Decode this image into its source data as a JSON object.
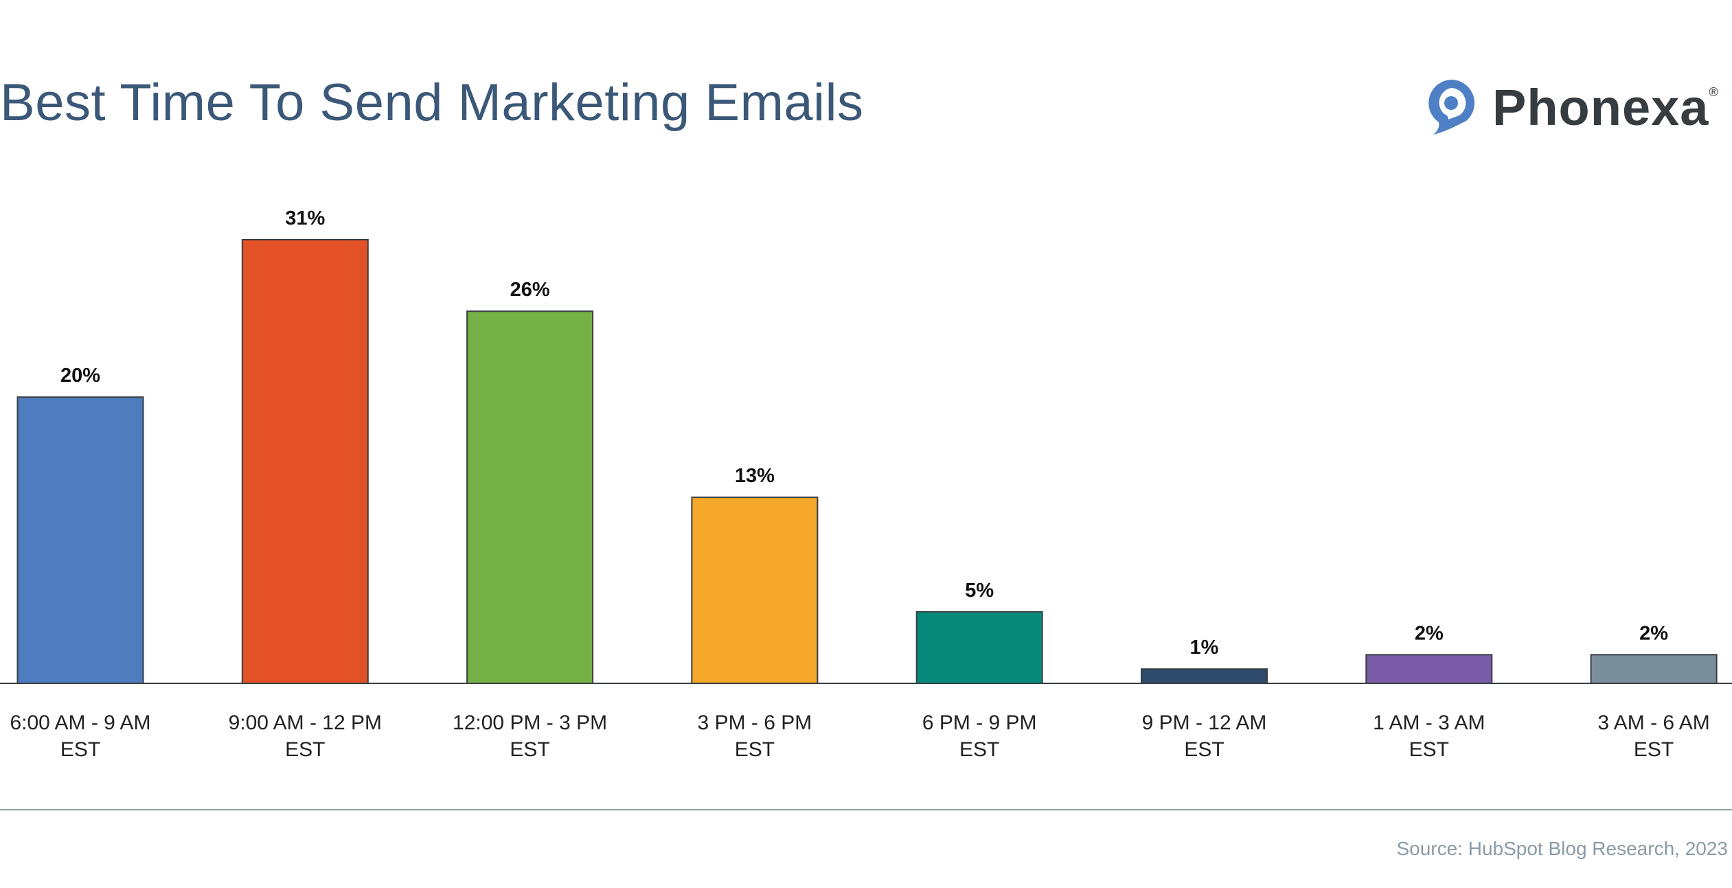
{
  "chart_data": {
    "type": "bar",
    "title": "Best Time To Send Marketing Emails",
    "categories": [
      [
        "6:00 AM - 9 AM",
        "EST"
      ],
      [
        "9:00 AM - 12 PM",
        "EST"
      ],
      [
        "12:00 PM - 3 PM",
        "EST"
      ],
      [
        "3 PM - 6 PM",
        "EST"
      ],
      [
        "6 PM - 9 PM",
        "EST"
      ],
      [
        "9 PM - 12 AM",
        "EST"
      ],
      [
        "1 AM - 3 AM",
        "EST"
      ],
      [
        "3 AM - 6 AM",
        "EST"
      ]
    ],
    "values": [
      20,
      31,
      26,
      13,
      5,
      1,
      2,
      2
    ],
    "data_labels": [
      "20%",
      "31%",
      "26%",
      "13%",
      "5%",
      "1%",
      "2%",
      "2%"
    ],
    "colors": [
      "#4f7cbe",
      "#e35227",
      "#74b045",
      "#f5a829",
      "#088a7b",
      "#2e4b6b",
      "#7a5ba8",
      "#7b8e9c"
    ],
    "xlabel": "",
    "ylabel": "",
    "ylim": [
      0,
      31
    ],
    "grid": false,
    "legend": "none"
  },
  "brand": {
    "name": "Phonexa",
    "registered": "®",
    "icon": "speech-bubble-pin-icon",
    "icon_color": "#4f7fc4"
  },
  "source": "Source: HubSpot Blog Research, 2023"
}
